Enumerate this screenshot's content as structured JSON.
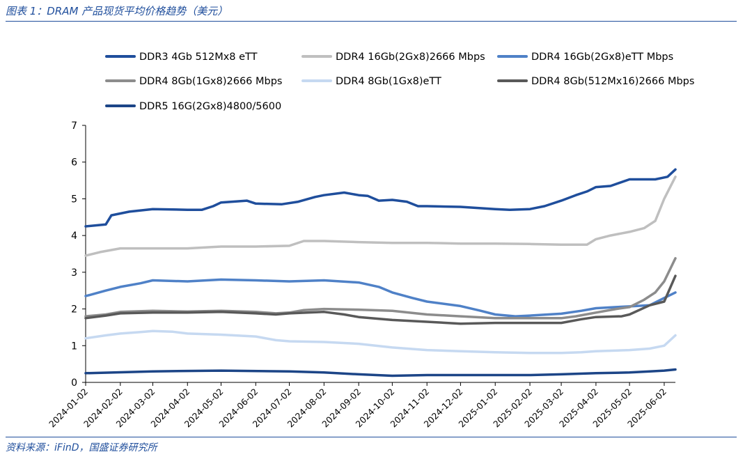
{
  "figure": {
    "title": "图表 1：DRAM 产品现货平均价格趋势（美元）",
    "source": "资料来源：iFinD，国盛证券研究所"
  },
  "chart_data": {
    "type": "line",
    "title": "DRAM 产品现货平均价格趋势（美元）",
    "xlabel": "",
    "ylabel": "",
    "ylim": [
      0,
      7
    ],
    "yticks": [
      "0",
      "1",
      "2",
      "3",
      "4",
      "5",
      "6",
      "7"
    ],
    "x_domain": [
      "2024-01-02",
      "2025-06-12"
    ],
    "xticks": [
      "2024-01-02",
      "2024-02-02",
      "2024-03-02",
      "2024-04-02",
      "2024-05-02",
      "2024-06-02",
      "2024-07-02",
      "2024-08-02",
      "2024-09-02",
      "2024-10-02",
      "2024-11-02",
      "2024-12-02",
      "2025-01-02",
      "2025-02-02",
      "2025-03-02",
      "2025-04-02",
      "2025-05-02",
      "2025-06-02"
    ],
    "legend_placement": "top",
    "series": [
      {
        "name": "DDR3 4Gb 512Mx8 eTT",
        "color": "#1f4e9c",
        "x": [
          "2024-01-02",
          "2024-01-20",
          "2024-01-25",
          "2024-02-10",
          "2024-03-02",
          "2024-04-02",
          "2024-04-15",
          "2024-04-25",
          "2024-05-02",
          "2024-05-25",
          "2024-06-02",
          "2024-06-25",
          "2024-07-10",
          "2024-07-25",
          "2024-08-02",
          "2024-08-20",
          "2024-09-02",
          "2024-09-10",
          "2024-09-20",
          "2024-10-02",
          "2024-10-15",
          "2024-10-25",
          "2024-11-02",
          "2024-12-02",
          "2025-01-02",
          "2025-01-15",
          "2025-02-02",
          "2025-02-15",
          "2025-03-02",
          "2025-03-15",
          "2025-03-25",
          "2025-04-02",
          "2025-04-15",
          "2025-05-02",
          "2025-05-25",
          "2025-06-05",
          "2025-06-12"
        ],
        "values": [
          4.25,
          4.3,
          4.55,
          4.65,
          4.72,
          4.7,
          4.7,
          4.8,
          4.9,
          4.95,
          4.87,
          4.85,
          4.92,
          5.05,
          5.1,
          5.17,
          5.1,
          5.08,
          4.95,
          4.97,
          4.92,
          4.8,
          4.8,
          4.78,
          4.72,
          4.7,
          4.72,
          4.8,
          4.95,
          5.1,
          5.2,
          5.32,
          5.35,
          5.53,
          5.53,
          5.6,
          5.8
        ]
      },
      {
        "name": "DDR4 16Gb(2Gx8)2666 Mbps",
        "color": "#bfbfbf",
        "x": [
          "2024-01-02",
          "2024-01-15",
          "2024-02-02",
          "2024-03-02",
          "2024-04-02",
          "2024-05-02",
          "2024-06-02",
          "2024-07-02",
          "2024-07-15",
          "2024-08-02",
          "2024-09-02",
          "2024-10-02",
          "2024-11-02",
          "2024-12-02",
          "2025-01-02",
          "2025-02-02",
          "2025-03-02",
          "2025-03-25",
          "2025-04-02",
          "2025-04-15",
          "2025-05-02",
          "2025-05-15",
          "2025-05-25",
          "2025-06-02",
          "2025-06-12"
        ],
        "values": [
          3.45,
          3.55,
          3.65,
          3.65,
          3.65,
          3.7,
          3.7,
          3.72,
          3.85,
          3.85,
          3.82,
          3.8,
          3.8,
          3.78,
          3.78,
          3.77,
          3.75,
          3.75,
          3.9,
          4.0,
          4.1,
          4.2,
          4.4,
          5.0,
          5.6
        ]
      },
      {
        "name": "DDR4 16Gb(2Gx8)eTT Mbps",
        "color": "#4f81c7",
        "x": [
          "2024-01-02",
          "2024-01-20",
          "2024-02-02",
          "2024-02-20",
          "2024-03-02",
          "2024-04-02",
          "2024-05-02",
          "2024-06-02",
          "2024-07-02",
          "2024-08-02",
          "2024-09-02",
          "2024-09-20",
          "2024-10-02",
          "2024-10-20",
          "2024-11-02",
          "2024-12-02",
          "2024-12-20",
          "2025-01-02",
          "2025-01-20",
          "2025-02-02",
          "2025-03-02",
          "2025-03-20",
          "2025-04-02",
          "2025-04-20",
          "2025-05-02",
          "2025-05-20",
          "2025-06-02",
          "2025-06-12"
        ],
        "values": [
          2.35,
          2.5,
          2.6,
          2.7,
          2.78,
          2.75,
          2.8,
          2.78,
          2.75,
          2.78,
          2.72,
          2.6,
          2.45,
          2.3,
          2.2,
          2.08,
          1.95,
          1.85,
          1.8,
          1.82,
          1.87,
          1.95,
          2.02,
          2.05,
          2.07,
          2.1,
          2.3,
          2.45
        ]
      },
      {
        "name": "DDR4 8Gb(1Gx8)2666 Mbps",
        "color": "#8c8c8c",
        "x": [
          "2024-01-02",
          "2024-01-20",
          "2024-02-02",
          "2024-03-02",
          "2024-04-02",
          "2024-05-02",
          "2024-06-02",
          "2024-06-20",
          "2024-07-02",
          "2024-07-15",
          "2024-08-02",
          "2024-09-02",
          "2024-10-02",
          "2024-11-02",
          "2024-12-02",
          "2025-01-02",
          "2025-02-02",
          "2025-03-02",
          "2025-03-15",
          "2025-04-02",
          "2025-04-20",
          "2025-05-02",
          "2025-05-15",
          "2025-05-25",
          "2025-06-02",
          "2025-06-12"
        ],
        "values": [
          1.8,
          1.85,
          1.92,
          1.95,
          1.93,
          1.95,
          1.92,
          1.88,
          1.9,
          1.97,
          2.0,
          1.98,
          1.95,
          1.85,
          1.8,
          1.75,
          1.75,
          1.75,
          1.8,
          1.9,
          2.0,
          2.05,
          2.25,
          2.45,
          2.75,
          3.38
        ]
      },
      {
        "name": "DDR4 8Gb(1Gx8)eTT",
        "color": "#c6d9f1",
        "x": [
          "2024-01-02",
          "2024-01-20",
          "2024-02-02",
          "2024-02-20",
          "2024-03-02",
          "2024-03-20",
          "2024-04-02",
          "2024-05-02",
          "2024-06-02",
          "2024-06-20",
          "2024-07-02",
          "2024-08-02",
          "2024-09-02",
          "2024-10-02",
          "2024-11-02",
          "2024-12-02",
          "2025-01-02",
          "2025-02-02",
          "2025-03-02",
          "2025-03-20",
          "2025-04-02",
          "2025-05-02",
          "2025-05-20",
          "2025-06-02",
          "2025-06-12"
        ],
        "values": [
          1.2,
          1.28,
          1.33,
          1.37,
          1.4,
          1.38,
          1.33,
          1.3,
          1.25,
          1.15,
          1.12,
          1.1,
          1.05,
          0.95,
          0.88,
          0.85,
          0.82,
          0.8,
          0.8,
          0.82,
          0.85,
          0.88,
          0.92,
          1.0,
          1.28
        ]
      },
      {
        "name": "DDR4 8Gb(512Mx16)2666 Mbps",
        "color": "#595959",
        "x": [
          "2024-01-02",
          "2024-01-20",
          "2024-02-02",
          "2024-03-02",
          "2024-04-02",
          "2024-05-02",
          "2024-06-02",
          "2024-06-20",
          "2024-07-02",
          "2024-08-02",
          "2024-08-20",
          "2024-09-02",
          "2024-10-02",
          "2024-11-02",
          "2024-12-02",
          "2025-01-02",
          "2025-02-02",
          "2025-03-02",
          "2025-03-20",
          "2025-04-02",
          "2025-04-25",
          "2025-05-02",
          "2025-05-20",
          "2025-06-02",
          "2025-06-12"
        ],
        "values": [
          1.75,
          1.82,
          1.88,
          1.9,
          1.9,
          1.92,
          1.88,
          1.85,
          1.88,
          1.92,
          1.85,
          1.78,
          1.7,
          1.65,
          1.6,
          1.62,
          1.62,
          1.62,
          1.72,
          1.78,
          1.8,
          1.85,
          2.1,
          2.2,
          2.9
        ]
      },
      {
        "name": "DDR5 16G(2Gx8)4800/5600",
        "color": "#1c4587",
        "x": [
          "2024-01-02",
          "2024-03-02",
          "2024-05-02",
          "2024-07-02",
          "2024-08-02",
          "2024-09-02",
          "2024-10-02",
          "2024-11-02",
          "2024-12-02",
          "2025-01-02",
          "2025-02-02",
          "2025-03-02",
          "2025-04-02",
          "2025-05-02",
          "2025-05-20",
          "2025-06-02",
          "2025-06-12"
        ],
        "values": [
          0.25,
          0.3,
          0.32,
          0.3,
          0.27,
          0.22,
          0.18,
          0.2,
          0.2,
          0.2,
          0.2,
          0.22,
          0.25,
          0.27,
          0.3,
          0.32,
          0.35
        ]
      }
    ]
  }
}
